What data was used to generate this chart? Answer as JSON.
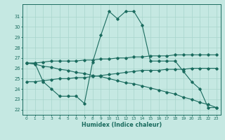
{
  "background_color": "#c5e8e2",
  "line_color": "#1a6b5e",
  "grid_color": "#a8d4cc",
  "xlabel": "Humidex (Indice chaleur)",
  "xlim": [
    -0.5,
    23.5
  ],
  "ylim": [
    21.5,
    32.2
  ],
  "xticks": [
    0,
    1,
    2,
    3,
    4,
    5,
    6,
    7,
    8,
    9,
    10,
    11,
    12,
    13,
    14,
    15,
    16,
    17,
    18,
    19,
    20,
    21,
    22,
    23
  ],
  "yticks": [
    22,
    23,
    24,
    25,
    26,
    27,
    28,
    29,
    30,
    31
  ],
  "line_a_x": [
    0,
    1,
    2,
    3,
    4,
    5,
    6,
    7,
    8,
    9,
    10,
    11,
    12,
    13,
    14,
    15,
    16,
    17,
    18,
    19,
    20,
    21,
    22,
    23
  ],
  "line_a_y": [
    26.5,
    26.5,
    24.7,
    24.0,
    23.3,
    23.3,
    23.3,
    22.6,
    26.6,
    29.2,
    31.5,
    30.8,
    31.5,
    31.5,
    30.2,
    26.7,
    26.7,
    26.7,
    26.7,
    25.7,
    24.7,
    24.0,
    22.2,
    22.2
  ],
  "line_b_x": [
    0,
    1,
    2,
    3,
    4,
    5,
    6,
    7,
    8,
    9,
    10,
    11,
    12,
    13,
    14,
    15,
    16,
    17,
    18,
    19,
    20,
    21,
    22,
    23
  ],
  "line_b_y": [
    26.5,
    26.5,
    26.6,
    26.7,
    26.7,
    26.7,
    26.7,
    26.8,
    26.8,
    26.9,
    26.9,
    27.0,
    27.0,
    27.1,
    27.1,
    27.2,
    27.2,
    27.2,
    27.3,
    27.3,
    27.3,
    27.3,
    27.3,
    27.3
  ],
  "line_c_x": [
    0,
    1,
    2,
    3,
    4,
    5,
    6,
    7,
    8,
    9,
    10,
    11,
    12,
    13,
    14,
    15,
    16,
    17,
    18,
    19,
    20,
    21,
    22,
    23
  ],
  "line_c_y": [
    24.7,
    24.7,
    24.8,
    24.9,
    25.0,
    25.0,
    25.1,
    25.1,
    25.2,
    25.3,
    25.4,
    25.5,
    25.6,
    25.7,
    25.8,
    25.8,
    25.8,
    25.9,
    25.9,
    25.9,
    26.0,
    26.0,
    26.0,
    26.0
  ],
  "line_d_x": [
    0,
    1,
    2,
    3,
    4,
    5,
    6,
    7,
    8,
    9,
    10,
    11,
    12,
    13,
    14,
    15,
    16,
    17,
    18,
    19,
    20,
    21,
    22,
    23
  ],
  "line_d_y": [
    26.5,
    26.4,
    26.2,
    26.1,
    25.9,
    25.8,
    25.6,
    25.5,
    25.3,
    25.2,
    25.0,
    24.8,
    24.6,
    24.5,
    24.3,
    24.1,
    23.9,
    23.7,
    23.5,
    23.2,
    23.0,
    22.7,
    22.5,
    22.2
  ]
}
